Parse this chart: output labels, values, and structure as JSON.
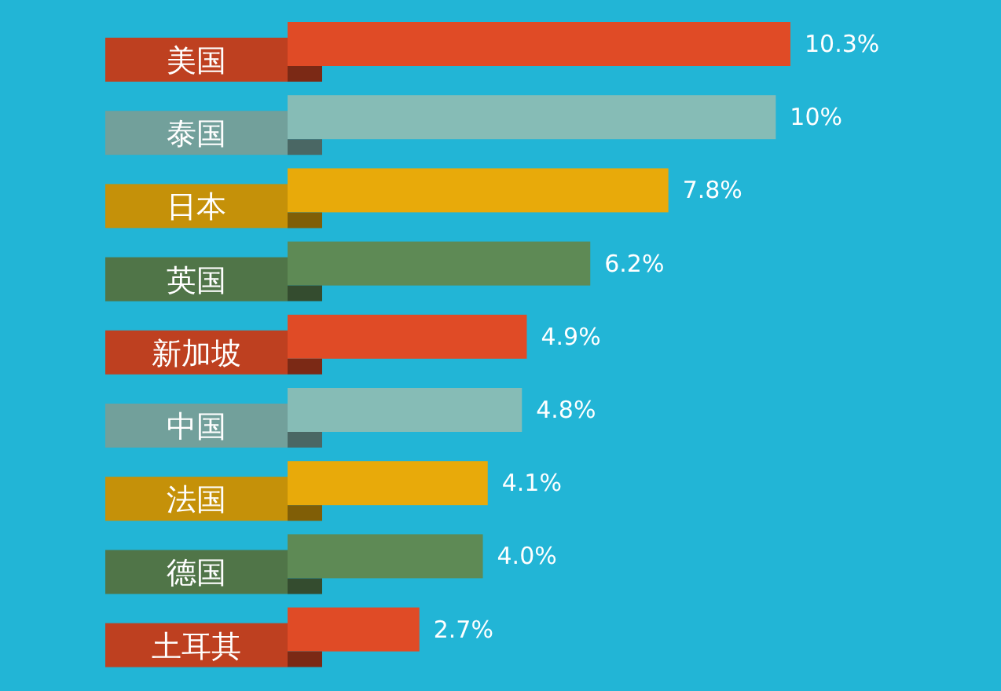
{
  "chart_data": {
    "type": "bar",
    "orientation": "horizontal",
    "data_labels": true,
    "categories": [
      "美国",
      "泰国",
      "日本",
      "英国",
      "新加坡",
      "中国",
      "法国",
      "德国",
      "土耳其"
    ],
    "values": [
      10.3,
      10,
      7.8,
      6.2,
      4.9,
      4.8,
      4.1,
      4.0,
      2.7
    ],
    "value_labels": [
      "10.3%",
      "10%",
      "7.8%",
      "6.2%",
      "4.9%",
      "4.8%",
      "4.1%",
      "4.0%",
      "2.7%"
    ],
    "colors": [
      "#e04b26",
      "#86bcb6",
      "#e8aa0a",
      "#5e8a55",
      "#e04b26",
      "#86bcb6",
      "#e8aa0a",
      "#5e8a55",
      "#e04b26"
    ]
  }
}
